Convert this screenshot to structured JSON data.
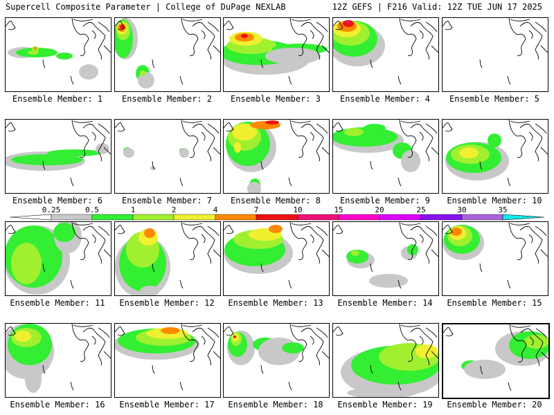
{
  "header": {
    "left": "Supercell Composite Parameter | College of DuPage NEXLAB",
    "right": "12Z GEFS | F216 Valid: 12Z TUE JUN 17 2025"
  },
  "colors": {
    "0.25": "#c8c8c8",
    "0.5": "#33ee33",
    "1": "#a0f030",
    "2": "#f0f030",
    "4": "#ff8800",
    "7": "#ee1111",
    "10": "#ee1177",
    "15": "#ff00cc",
    "20": "#dd00ff",
    "25": "#8811ee",
    "30": "#aa66dd",
    "35": "#11eeee"
  },
  "colorbar": {
    "labels": [
      "0.25",
      "0.5",
      "1",
      "2",
      "4",
      "7",
      "10",
      "15",
      "20",
      "25",
      "30",
      "35"
    ]
  },
  "label_prefix": "Ensemble Member:",
  "members": [
    {
      "label": "Ensemble Member: 1",
      "max_level": "4"
    },
    {
      "label": "Ensemble Member: 2",
      "max_level": "10"
    },
    {
      "label": "Ensemble Member: 3",
      "max_level": "7"
    },
    {
      "label": "Ensemble Member: 4",
      "max_level": "10"
    },
    {
      "label": "Ensemble Member: 5",
      "max_level": "0"
    },
    {
      "label": "Ensemble Member: 6",
      "max_level": "2"
    },
    {
      "label": "Ensemble Member: 7",
      "max_level": "1"
    },
    {
      "label": "Ensemble Member: 8",
      "max_level": "7"
    },
    {
      "label": "Ensemble Member: 9",
      "max_level": "2"
    },
    {
      "label": "Ensemble Member: 10",
      "max_level": "2"
    },
    {
      "label": "Ensemble Member: 11",
      "max_level": "2"
    },
    {
      "label": "Ensemble Member: 12",
      "max_level": "4"
    },
    {
      "label": "Ensemble Member: 13",
      "max_level": "4"
    },
    {
      "label": "Ensemble Member: 14",
      "max_level": "1"
    },
    {
      "label": "Ensemble Member: 15",
      "max_level": "4"
    },
    {
      "label": "Ensemble Member: 16",
      "max_level": "2"
    },
    {
      "label": "Ensemble Member: 17",
      "max_level": "4"
    },
    {
      "label": "Ensemble Member: 18",
      "max_level": "7"
    },
    {
      "label": "Ensemble Member: 19",
      "max_level": "2"
    },
    {
      "label": "Ensemble Member: 20",
      "max_level": "2"
    }
  ]
}
